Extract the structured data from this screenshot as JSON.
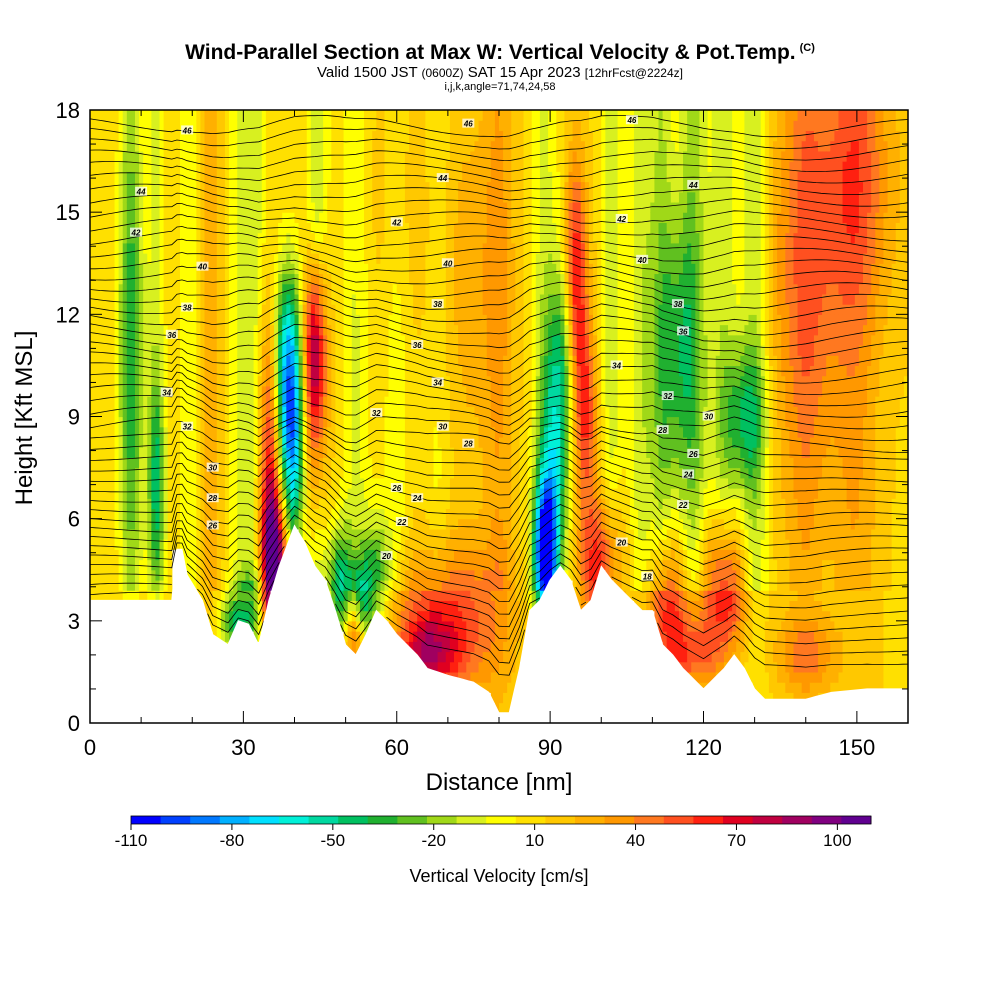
{
  "header": {
    "title": "Wind-Parallel Section at Max W: Vertical Velocity & Pot.Temp.",
    "copyright": "(C)",
    "valid_prefix": "Valid 1500 JST",
    "valid_utc": "(0600Z)",
    "valid_date": "SAT 15 Apr 2023",
    "forecast": "[12hrFcst@2224z]",
    "indices": "i,j,k,angle=71,74,24,58"
  },
  "colorbar": {
    "label": "Vertical Velocity [cm/s]",
    "tick_labels": [
      "-110",
      "-80",
      "-50",
      "-20",
      "10",
      "40",
      "70",
      "100"
    ],
    "colors": [
      "#0000ff",
      "#0040ff",
      "#0078ff",
      "#00b0ff",
      "#00e0ff",
      "#00f0d8",
      "#00d8a0",
      "#00c060",
      "#20b030",
      "#60c020",
      "#a0d818",
      "#d8f020",
      "#ffff00",
      "#ffe000",
      "#ffc800",
      "#ffb000",
      "#ff9800",
      "#ff7820",
      "#ff5020",
      "#ff2010",
      "#e00020",
      "#c00040",
      "#a00060",
      "#800080",
      "#600090"
    ]
  },
  "chart_data": {
    "type": "heatmap",
    "xlabel": "Distance [nm]",
    "ylabel": "Height [Kft MSL]",
    "xlim": [
      0,
      160
    ],
    "ylim": [
      0,
      18
    ],
    "xticks": [
      0,
      30,
      60,
      90,
      120,
      150
    ],
    "yticks": [
      0,
      3,
      6,
      9,
      12,
      15,
      18
    ],
    "color_variable": "Vertical Velocity [cm/s]",
    "color_range": [
      -110,
      110
    ],
    "contour_variable": "Potential temperature",
    "contour_labels": [
      {
        "x": 19,
        "y": 17.4,
        "label": "46"
      },
      {
        "x": 74,
        "y": 17.6,
        "label": "46"
      },
      {
        "x": 106,
        "y": 17.7,
        "label": "46"
      },
      {
        "x": 10,
        "y": 15.6,
        "label": "44"
      },
      {
        "x": 69,
        "y": 16.0,
        "label": "44"
      },
      {
        "x": 118,
        "y": 15.8,
        "label": "44"
      },
      {
        "x": 9,
        "y": 14.4,
        "label": "42"
      },
      {
        "x": 60,
        "y": 14.7,
        "label": "42"
      },
      {
        "x": 104,
        "y": 14.8,
        "label": "42"
      },
      {
        "x": 22,
        "y": 13.4,
        "label": "40"
      },
      {
        "x": 70,
        "y": 13.5,
        "label": "40"
      },
      {
        "x": 108,
        "y": 13.6,
        "label": "40"
      },
      {
        "x": 19,
        "y": 12.2,
        "label": "38"
      },
      {
        "x": 68,
        "y": 12.3,
        "label": "38"
      },
      {
        "x": 115,
        "y": 12.3,
        "label": "38"
      },
      {
        "x": 16,
        "y": 11.4,
        "label": "36"
      },
      {
        "x": 64,
        "y": 11.1,
        "label": "36"
      },
      {
        "x": 116,
        "y": 11.5,
        "label": "36"
      },
      {
        "x": 15,
        "y": 9.7,
        "label": "34"
      },
      {
        "x": 68,
        "y": 10.0,
        "label": "34"
      },
      {
        "x": 103,
        "y": 10.5,
        "label": "34"
      },
      {
        "x": 19,
        "y": 8.7,
        "label": "32"
      },
      {
        "x": 56,
        "y": 9.1,
        "label": "32"
      },
      {
        "x": 113,
        "y": 9.6,
        "label": "32"
      },
      {
        "x": 24,
        "y": 7.5,
        "label": "30"
      },
      {
        "x": 69,
        "y": 8.7,
        "label": "30"
      },
      {
        "x": 121,
        "y": 9.0,
        "label": "30"
      },
      {
        "x": 24,
        "y": 6.6,
        "label": "28"
      },
      {
        "x": 74,
        "y": 8.2,
        "label": "28"
      },
      {
        "x": 112,
        "y": 8.6,
        "label": "28"
      },
      {
        "x": 24,
        "y": 5.8,
        "label": "26"
      },
      {
        "x": 60,
        "y": 6.9,
        "label": "26"
      },
      {
        "x": 118,
        "y": 7.9,
        "label": "26"
      },
      {
        "x": 64,
        "y": 6.6,
        "label": "24"
      },
      {
        "x": 117,
        "y": 7.3,
        "label": "24"
      },
      {
        "x": 61,
        "y": 5.9,
        "label": "22"
      },
      {
        "x": 116,
        "y": 6.4,
        "label": "22"
      },
      {
        "x": 58,
        "y": 4.9,
        "label": "20"
      },
      {
        "x": 104,
        "y": 5.3,
        "label": "20"
      },
      {
        "x": 109,
        "y": 4.3,
        "label": "18"
      }
    ]
  }
}
